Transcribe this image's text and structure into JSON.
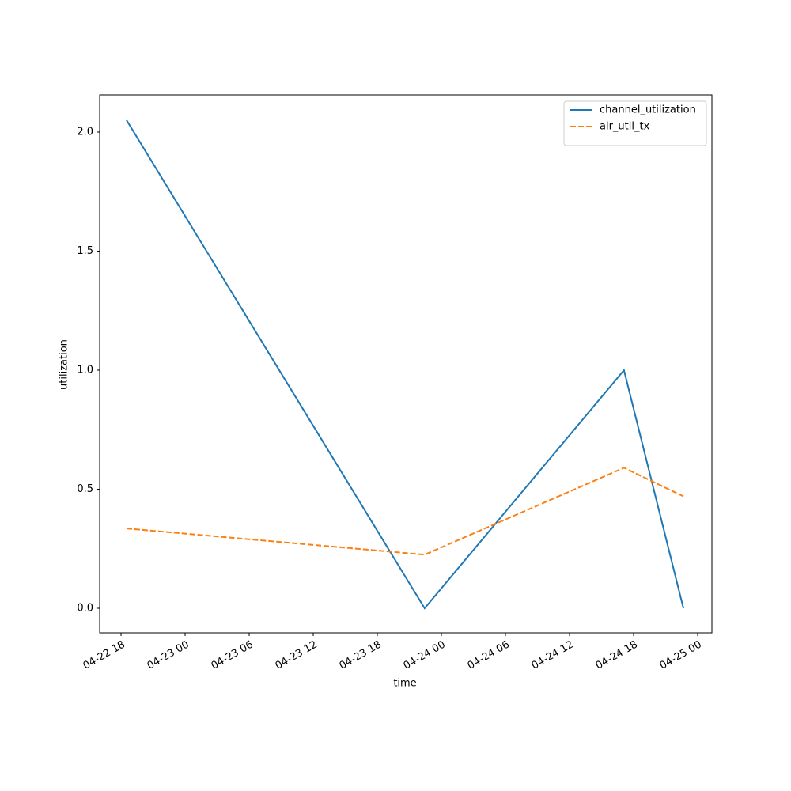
{
  "chart_data": {
    "type": "line",
    "x_label": "time",
    "y_label": "utilization",
    "x": [
      "04-22 18:31",
      "04-23 22:26",
      "04-24 17:06",
      "04-24 22:40"
    ],
    "series": [
      {
        "name": "channel_utilization",
        "color": "#1f77b4",
        "dash": "solid",
        "values": [
          2.05,
          0,
          1.0,
          0
        ]
      },
      {
        "name": "air_util_tx",
        "color": "#ff7f0e",
        "dash": "dashed",
        "values": [
          0.335,
          0.225,
          0.59,
          0.47
        ]
      }
    ],
    "xlim": [
      "04-22 16:00",
      "04-25 01:20"
    ],
    "xticks": [
      "04-22 18",
      "04-23 00",
      "04-23 06",
      "04-23 12",
      "04-23 18",
      "04-24 00",
      "04-24 06",
      "04-24 12",
      "04-24 18",
      "04-25 00"
    ],
    "ylim": [
      -0.103,
      2.156
    ],
    "yticks": [
      {
        "value": 0,
        "label": "0.0"
      },
      {
        "value": 0.5,
        "label": "0.5"
      },
      {
        "value": 1,
        "label": "1.0"
      },
      {
        "value": 1.5,
        "label": "1.5"
      },
      {
        "value": 2,
        "label": "2.0"
      }
    ],
    "legend": "upper right",
    "grid": false
  }
}
